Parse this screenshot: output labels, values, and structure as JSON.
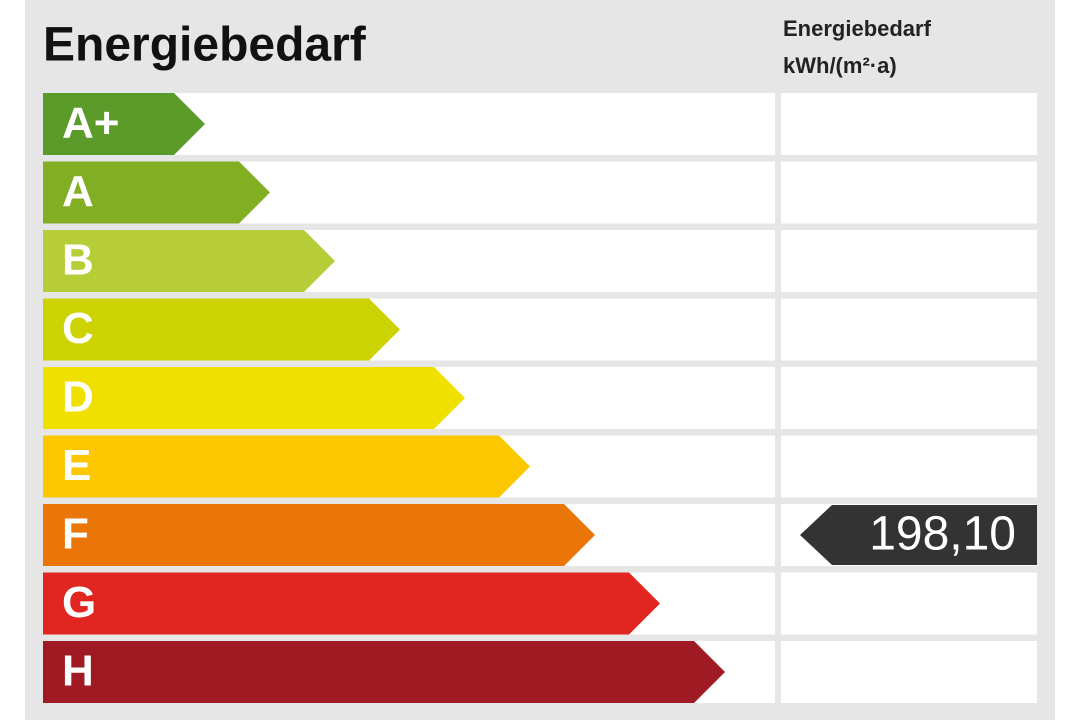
{
  "header": {
    "title": "Energiebedarf",
    "column_header": [
      "Energiebedarf",
      "kWh/(m²·a)"
    ]
  },
  "classes": [
    {
      "label": "A+",
      "color": "#5b9b2a"
    },
    {
      "label": "A",
      "color": "#82ae24"
    },
    {
      "label": "B",
      "color": "#b6cd37"
    },
    {
      "label": "C",
      "color": "#ccd300"
    },
    {
      "label": "D",
      "color": "#f0e000"
    },
    {
      "label": "E",
      "color": "#fdc700"
    },
    {
      "label": "F",
      "color": "#ea7608",
      "value": "198,10"
    },
    {
      "label": "G",
      "color": "#e12521"
    },
    {
      "label": "H",
      "color": "#9f1a22"
    }
  ]
}
